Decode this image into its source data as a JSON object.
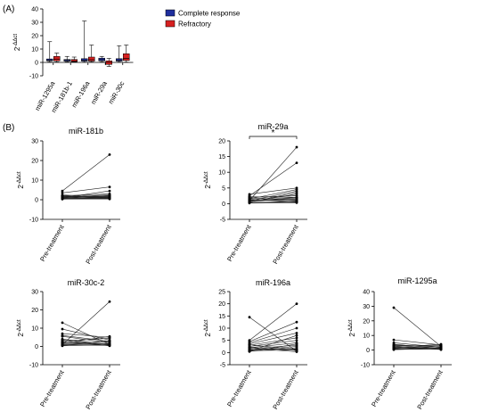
{
  "panel_labels": {
    "a": "(A)",
    "b": "(B)"
  },
  "chart_data": [
    {
      "type": "box",
      "id": "A",
      "title": "",
      "ylabel": "2^-ΔΔct",
      "ylim": [
        -10,
        40
      ],
      "yticks": [
        -10,
        0,
        10,
        20,
        30,
        40
      ],
      "legend_placement": "top-right",
      "categories": [
        "miR-1295a",
        "miR-181b-1",
        "miR-196a",
        "miR-29a",
        "miR-30c"
      ],
      "series": [
        {
          "name": "Complete response",
          "color": "#1f2f9e",
          "boxes": [
            {
              "min": 0.3,
              "q1": 1.2,
              "median": 1.8,
              "q3": 2.6,
              "max": 15.5
            },
            {
              "min": 0.4,
              "q1": 1.0,
              "median": 1.5,
              "q3": 2.2,
              "max": 4.5
            },
            {
              "min": 0.2,
              "q1": 1.0,
              "median": 1.6,
              "q3": 2.8,
              "max": 31.0
            },
            {
              "min": 0.3,
              "q1": 1.2,
              "median": 2.0,
              "q3": 3.2,
              "max": 4.5
            },
            {
              "min": 0.2,
              "q1": 1.0,
              "median": 1.8,
              "q3": 2.8,
              "max": 12.5
            }
          ]
        },
        {
          "name": "Refractory",
          "color": "#d62020",
          "boxes": [
            {
              "min": 0.3,
              "q1": 1.2,
              "median": 2.5,
              "q3": 4.5,
              "max": 7.0
            },
            {
              "min": 0.2,
              "q1": 0.5,
              "median": 1.2,
              "q3": 2.2,
              "max": 4.0
            },
            {
              "min": 0.3,
              "q1": 1.0,
              "median": 2.0,
              "q3": 4.0,
              "max": 13.0
            },
            {
              "min": -3.0,
              "q1": -1.5,
              "median": 0.0,
              "q3": 1.2,
              "max": 3.0
            },
            {
              "min": 0.2,
              "q1": 1.5,
              "median": 3.0,
              "q3": 6.5,
              "max": 13.0
            }
          ]
        }
      ]
    },
    {
      "type": "paired-line",
      "id": "B1",
      "title": "miR-181b",
      "ylabel": "2^-ΔΔct",
      "ylim": [
        -10,
        30
      ],
      "yticks": [
        -10,
        0,
        10,
        20,
        30
      ],
      "categories": [
        "Pre-treatment",
        "Post-treatment"
      ],
      "significance": "",
      "pairs": [
        [
          4.5,
          23.0
        ],
        [
          3.5,
          6.5
        ],
        [
          1.0,
          4.5
        ],
        [
          2.0,
          3.0
        ],
        [
          1.5,
          2.5
        ],
        [
          1.0,
          1.0
        ],
        [
          0.8,
          1.5
        ],
        [
          2.0,
          0.8
        ],
        [
          1.5,
          1.8
        ],
        [
          0.5,
          0.5
        ],
        [
          1.2,
          2.0
        ],
        [
          0.6,
          1.2
        ],
        [
          2.5,
          1.0
        ],
        [
          1.0,
          0.6
        ],
        [
          0.3,
          0.9
        ],
        [
          1.8,
          1.3
        ],
        [
          0.9,
          2.2
        ],
        [
          0.4,
          0.4
        ]
      ]
    },
    {
      "type": "paired-line",
      "id": "B2",
      "title": "miR-29a",
      "ylabel": "2^-ΔΔct",
      "ylim": [
        -5,
        20
      ],
      "yticks": [
        -5,
        0,
        5,
        10,
        15,
        20
      ],
      "categories": [
        "Pre-treatment",
        "Post-treatment"
      ],
      "significance": "*",
      "pairs": [
        [
          1.0,
          18.0
        ],
        [
          2.5,
          13.0
        ],
        [
          3.0,
          5.0
        ],
        [
          1.5,
          4.5
        ],
        [
          0.5,
          3.5
        ],
        [
          2.0,
          2.5
        ],
        [
          1.0,
          2.0
        ],
        [
          0.8,
          1.5
        ],
        [
          1.2,
          1.0
        ],
        [
          0.3,
          0.8
        ],
        [
          0.6,
          3.0
        ],
        [
          1.8,
          1.2
        ],
        [
          0.4,
          0.5
        ],
        [
          2.2,
          2.0
        ],
        [
          0.9,
          4.0
        ],
        [
          1.4,
          0.6
        ],
        [
          0.7,
          1.8
        ],
        [
          0.2,
          0.3
        ]
      ]
    },
    {
      "type": "paired-line",
      "id": "B3",
      "title": "miR-30c-2",
      "ylabel": "2^-ΔΔct",
      "ylim": [
        -10,
        30
      ],
      "yticks": [
        -10,
        0,
        10,
        20,
        30
      ],
      "categories": [
        "Pre-treatment",
        "Post-treatment"
      ],
      "significance": "",
      "pairs": [
        [
          13.0,
          1.0
        ],
        [
          9.5,
          3.5
        ],
        [
          7.0,
          5.0
        ],
        [
          1.0,
          24.5
        ],
        [
          5.5,
          2.0
        ],
        [
          4.0,
          1.0
        ],
        [
          3.0,
          4.5
        ],
        [
          2.5,
          0.5
        ],
        [
          2.0,
          2.5
        ],
        [
          1.5,
          1.5
        ],
        [
          1.0,
          0.8
        ],
        [
          0.5,
          3.0
        ],
        [
          3.5,
          0.3
        ],
        [
          2.2,
          1.2
        ],
        [
          0.8,
          0.6
        ],
        [
          6.0,
          2.8
        ],
        [
          1.8,
          5.5
        ],
        [
          0.3,
          1.0
        ]
      ]
    },
    {
      "type": "paired-line",
      "id": "B4",
      "title": "miR-196a",
      "ylabel": "2^-ΔΔct",
      "ylim": [
        -5,
        25
      ],
      "yticks": [
        -5,
        0,
        5,
        10,
        15,
        20,
        25
      ],
      "categories": [
        "Pre-treatment",
        "Post-treatment"
      ],
      "significance": "",
      "pairs": [
        [
          14.5,
          0.5
        ],
        [
          5.0,
          20.0
        ],
        [
          4.5,
          12.5
        ],
        [
          4.0,
          10.0
        ],
        [
          3.5,
          8.0
        ],
        [
          3.0,
          6.0
        ],
        [
          2.5,
          5.0
        ],
        [
          2.0,
          4.0
        ],
        [
          1.5,
          3.0
        ],
        [
          1.0,
          2.5
        ],
        [
          0.5,
          2.0
        ],
        [
          1.2,
          1.5
        ],
        [
          0.8,
          1.0
        ],
        [
          2.2,
          0.8
        ],
        [
          1.8,
          0.3
        ],
        [
          0.4,
          3.5
        ],
        [
          3.2,
          1.2
        ],
        [
          0.6,
          7.0
        ]
      ]
    },
    {
      "type": "paired-line",
      "id": "B5",
      "title": "miR-1295a",
      "ylabel": "2^-ΔΔct",
      "ylim": [
        -10,
        40
      ],
      "yticks": [
        -10,
        0,
        10,
        20,
        30,
        40
      ],
      "categories": [
        "Pre-treatment",
        "Post-treatment"
      ],
      "significance": "",
      "pairs": [
        [
          29.0,
          2.5
        ],
        [
          7.0,
          3.5
        ],
        [
          5.0,
          2.0
        ],
        [
          4.0,
          1.0
        ],
        [
          3.0,
          3.0
        ],
        [
          2.5,
          1.5
        ],
        [
          2.0,
          0.5
        ],
        [
          1.5,
          2.5
        ],
        [
          1.0,
          1.2
        ],
        [
          0.5,
          0.8
        ],
        [
          1.8,
          4.0
        ],
        [
          2.8,
          0.3
        ],
        [
          0.8,
          1.8
        ],
        [
          3.5,
          2.2
        ],
        [
          1.2,
          0.6
        ],
        [
          0.3,
          1.0
        ]
      ]
    }
  ]
}
